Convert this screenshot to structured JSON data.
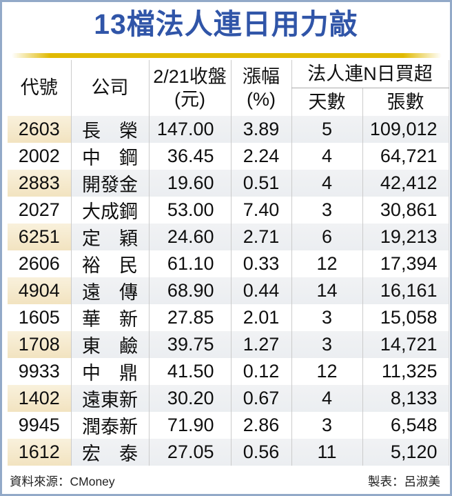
{
  "title": "13檔法人連日用力敲",
  "colors": {
    "title_blue": "#3055a8",
    "accent_gold": "#e0b900",
    "code_cell_cream": "#f7ecd1",
    "alt_row_gray": "#eff1f3",
    "outer_border": "#92a9c8"
  },
  "table": {
    "headers": {
      "code": "代號",
      "company": "公司",
      "close_line1": "2/21收盤",
      "close_line2": "(元)",
      "change_line1": "漲幅",
      "change_line2": "(%)",
      "group": "法人連N日買超",
      "days": "天數",
      "lots": "張數"
    },
    "rows": [
      {
        "code": "2603",
        "company": "長　榮",
        "close": "147.00",
        "change": "3.89",
        "days": "5",
        "lots": "109,012"
      },
      {
        "code": "2002",
        "company": "中　鋼",
        "close": "36.45",
        "change": "2.24",
        "days": "4",
        "lots": "64,721"
      },
      {
        "code": "2883",
        "company": "開發金",
        "close": "19.60",
        "change": "0.51",
        "days": "4",
        "lots": "42,412"
      },
      {
        "code": "2027",
        "company": "大成鋼",
        "close": "53.00",
        "change": "7.40",
        "days": "3",
        "lots": "30,861"
      },
      {
        "code": "6251",
        "company": "定　穎",
        "close": "24.60",
        "change": "2.71",
        "days": "6",
        "lots": "19,213"
      },
      {
        "code": "2606",
        "company": "裕　民",
        "close": "61.10",
        "change": "0.33",
        "days": "12",
        "lots": "17,394"
      },
      {
        "code": "4904",
        "company": "遠　傳",
        "close": "68.90",
        "change": "0.44",
        "days": "14",
        "lots": "16,161"
      },
      {
        "code": "1605",
        "company": "華　新",
        "close": "27.85",
        "change": "2.01",
        "days": "3",
        "lots": "15,058"
      },
      {
        "code": "1708",
        "company": "東　鹼",
        "close": "39.75",
        "change": "1.27",
        "days": "3",
        "lots": "14,721"
      },
      {
        "code": "9933",
        "company": "中　鼎",
        "close": "41.50",
        "change": "0.12",
        "days": "12",
        "lots": "11,325"
      },
      {
        "code": "1402",
        "company": "遠東新",
        "close": "30.20",
        "change": "0.67",
        "days": "4",
        "lots": "8,133"
      },
      {
        "code": "9945",
        "company": "潤泰新",
        "close": "71.90",
        "change": "2.86",
        "days": "3",
        "lots": "6,548"
      },
      {
        "code": "1612",
        "company": "宏　泰",
        "close": "27.05",
        "change": "0.56",
        "days": "11",
        "lots": "5,120"
      }
    ]
  },
  "footer": {
    "source": "資料來源：CMoney",
    "credit": "製表：呂淑美"
  }
}
